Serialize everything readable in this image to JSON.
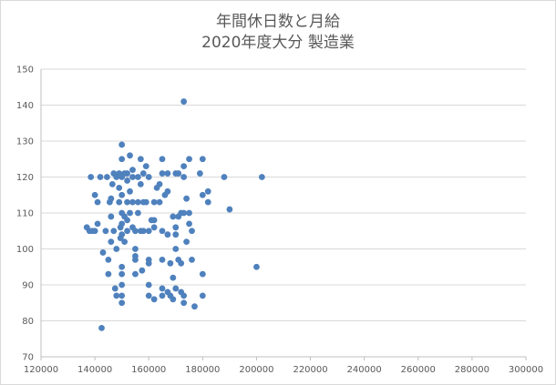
{
  "chart_data": {
    "type": "scatter",
    "title": [
      "年間休日数と月給",
      "2020年度大分 製造業"
    ],
    "xlabel": "",
    "ylabel": "",
    "xlim": [
      120000,
      300000
    ],
    "ylim": [
      70,
      150
    ],
    "x_ticks": [
      120000,
      140000,
      160000,
      180000,
      200000,
      220000,
      240000,
      260000,
      280000,
      300000
    ],
    "y_ticks": [
      70,
      80,
      90,
      100,
      110,
      120,
      130,
      140,
      150
    ],
    "grid": "horizontal",
    "legend": "none",
    "marker_color": "#4f81bd",
    "series": [
      {
        "points": [
          [
            137000,
            106
          ],
          [
            138000,
            105
          ],
          [
            138500,
            120
          ],
          [
            139000,
            105
          ],
          [
            140000,
            115
          ],
          [
            140000,
            105
          ],
          [
            141000,
            113
          ],
          [
            141000,
            107
          ],
          [
            142000,
            120
          ],
          [
            142500,
            78
          ],
          [
            143000,
            99
          ],
          [
            144000,
            105
          ],
          [
            144500,
            120
          ],
          [
            145000,
            97
          ],
          [
            145000,
            93
          ],
          [
            145500,
            113
          ],
          [
            146000,
            114
          ],
          [
            146000,
            102
          ],
          [
            146000,
            109
          ],
          [
            146500,
            118
          ],
          [
            147000,
            121
          ],
          [
            147000,
            105
          ],
          [
            147500,
            89
          ],
          [
            148000,
            120
          ],
          [
            148000,
            100
          ],
          [
            148000,
            87
          ],
          [
            149000,
            121
          ],
          [
            149000,
            117
          ],
          [
            149000,
            113
          ],
          [
            149500,
            106
          ],
          [
            149500,
            103
          ],
          [
            150000,
            129
          ],
          [
            150000,
            125
          ],
          [
            150000,
            120
          ],
          [
            150000,
            115
          ],
          [
            150000,
            110
          ],
          [
            150000,
            107
          ],
          [
            150000,
            104
          ],
          [
            150000,
            95
          ],
          [
            150000,
            93
          ],
          [
            150000,
            90
          ],
          [
            150000,
            87
          ],
          [
            150000,
            85
          ],
          [
            151000,
            121
          ],
          [
            151000,
            109
          ],
          [
            151000,
            102
          ],
          [
            152000,
            121
          ],
          [
            152000,
            119
          ],
          [
            152000,
            113
          ],
          [
            152000,
            108
          ],
          [
            152000,
            105
          ],
          [
            153000,
            126
          ],
          [
            153000,
            116
          ],
          [
            153000,
            110
          ],
          [
            154000,
            122
          ],
          [
            154000,
            120
          ],
          [
            154000,
            113
          ],
          [
            154000,
            106
          ],
          [
            155000,
            105
          ],
          [
            155000,
            100
          ],
          [
            155000,
            98
          ],
          [
            155000,
            97
          ],
          [
            155000,
            93
          ],
          [
            156000,
            120
          ],
          [
            156000,
            113
          ],
          [
            156000,
            110
          ],
          [
            157000,
            125
          ],
          [
            157000,
            118
          ],
          [
            157000,
            105
          ],
          [
            157500,
            94
          ],
          [
            158000,
            121
          ],
          [
            158000,
            113
          ],
          [
            158000,
            105
          ],
          [
            159000,
            123
          ],
          [
            159000,
            113
          ],
          [
            160000,
            120
          ],
          [
            160000,
            105
          ],
          [
            160000,
            97
          ],
          [
            160000,
            96
          ],
          [
            160000,
            90
          ],
          [
            160000,
            87
          ],
          [
            161000,
            108
          ],
          [
            162000,
            108
          ],
          [
            162000,
            113
          ],
          [
            162000,
            106
          ],
          [
            162000,
            86
          ],
          [
            163000,
            117
          ],
          [
            164000,
            118
          ],
          [
            164000,
            113
          ],
          [
            165000,
            125
          ],
          [
            165000,
            121
          ],
          [
            165000,
            105
          ],
          [
            165000,
            97
          ],
          [
            165000,
            89
          ],
          [
            165000,
            87
          ],
          [
            166000,
            115
          ],
          [
            167000,
            121
          ],
          [
            167000,
            116
          ],
          [
            167000,
            104
          ],
          [
            167000,
            88
          ],
          [
            168000,
            96
          ],
          [
            168000,
            87
          ],
          [
            169000,
            109
          ],
          [
            169000,
            92
          ],
          [
            169000,
            86
          ],
          [
            170000,
            121
          ],
          [
            170000,
            106
          ],
          [
            170000,
            104
          ],
          [
            170000,
            100
          ],
          [
            170000,
            89
          ],
          [
            171000,
            121
          ],
          [
            171000,
            109
          ],
          [
            171000,
            97
          ],
          [
            172000,
            110
          ],
          [
            172000,
            96
          ],
          [
            172000,
            88
          ],
          [
            173000,
            141
          ],
          [
            173000,
            123
          ],
          [
            173000,
            120
          ],
          [
            173000,
            110
          ],
          [
            173000,
            87
          ],
          [
            173000,
            85
          ],
          [
            174000,
            114
          ],
          [
            174000,
            102
          ],
          [
            175000,
            125
          ],
          [
            175000,
            110
          ],
          [
            175000,
            107
          ],
          [
            176000,
            105
          ],
          [
            176000,
            97
          ],
          [
            177000,
            84
          ],
          [
            179000,
            121
          ],
          [
            180000,
            125
          ],
          [
            180000,
            115
          ],
          [
            180000,
            93
          ],
          [
            180000,
            87
          ],
          [
            182000,
            116
          ],
          [
            182000,
            113
          ],
          [
            188000,
            120
          ],
          [
            190000,
            111
          ],
          [
            200000,
            95
          ],
          [
            202000,
            120
          ]
        ]
      }
    ]
  }
}
